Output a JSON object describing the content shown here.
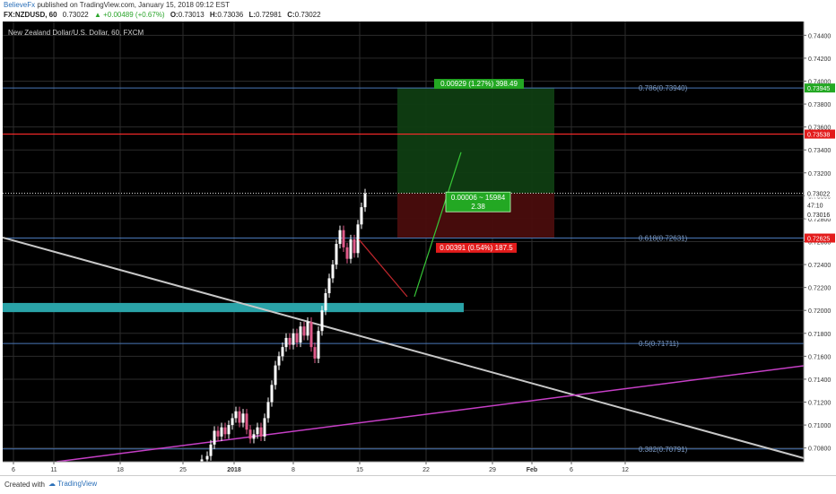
{
  "header": {
    "author": "BelieveFx",
    "published_text": "published on TradingView.com, January 15, 2018 09:12 EST",
    "symbol": "FX:NZDUSD, 60",
    "last": "0.73022",
    "change": "▲ +0.00489 (+0.67%)",
    "o_label": "O:",
    "o_value": "0.73013",
    "h_label": "H:",
    "h_value": "0.73036",
    "l_label": "L:",
    "l_value": "0.72981",
    "c_label": "C:",
    "c_value": "0.73022"
  },
  "footer": {
    "created_with": "Created with",
    "brand": "TradingView"
  },
  "colors": {
    "background": "#000000",
    "grid": "#2b2b2b",
    "candle_up": "#ffffff",
    "candle_down": "#e05a8a",
    "red_line": "#ff2b2b",
    "fib_line": "#4a78b8",
    "fib_text": "#7d9ac2",
    "teal_zone": "#2aa3a8",
    "magenta_line": "#c63fc6",
    "white_line": "#c8c8c8",
    "target_zone": "#0f3d12",
    "stop_zone": "#4a0d0d",
    "green_label": "#23a823",
    "red_label": "#e31b1b"
  },
  "chart_data": {
    "type": "candlestick",
    "title": "New Zealand Dollar/U.S. Dollar, 60, FXCM",
    "y_ticks": [
      "0.74400",
      "0.74200",
      "0.74000",
      "0.73800",
      "0.73600",
      "0.73400",
      "0.73200",
      "0.73000",
      "0.72800",
      "0.72600",
      "0.72400",
      "0.72200",
      "0.72000",
      "0.71800",
      "0.71600",
      "0.71400",
      "0.71200",
      "0.71000",
      "0.70800"
    ],
    "ylim": [
      0.7068,
      0.7452
    ],
    "x_ticks": [
      "6",
      "11",
      "18",
      "25",
      "2018",
      "8",
      "15",
      "22",
      "29",
      "Feb",
      "6",
      "12"
    ],
    "current_price_label": "0.73022",
    "countdown_label": "47:10",
    "bid_label": "0.73016",
    "red_line_label": "0.73538",
    "red_line_value": 0.73538,
    "target_label": "0.73945",
    "stop_label": "0.72625",
    "fib_levels": [
      {
        "label": "0.786(0.73940)",
        "value": 0.7394
      },
      {
        "label": "0.618(0.72631)",
        "value": 0.72631
      },
      {
        "label": "0.5(0.71711)",
        "value": 0.71711
      },
      {
        "label": "0.382(0.70791)",
        "value": 0.70791
      }
    ],
    "teal_zone": [
      0.71985,
      0.72065
    ],
    "position": {
      "target_text": "0.00929 (1.27%) 398.49",
      "center_text_1": "0.00006 ~ 15984",
      "center_text_2": "2.38",
      "stop_text": "0.00391 (0.54%) 187.5"
    }
  }
}
